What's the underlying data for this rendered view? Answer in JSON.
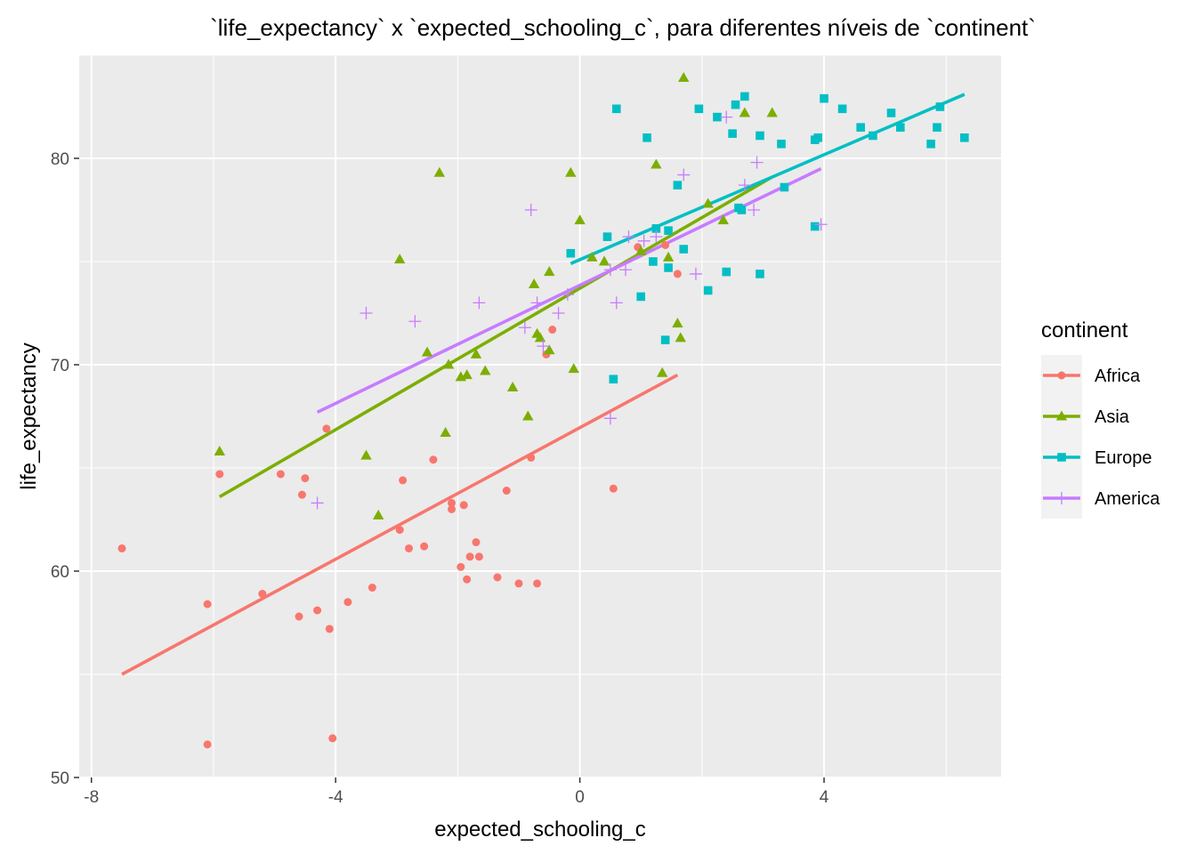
{
  "chart_data": {
    "type": "scatter",
    "title": "`life_expectancy` x `expected_schooling_c`, para diferentes níveis de `continent`",
    "xlabel": "expected_schooling_c",
    "ylabel": "life_expectancy",
    "xlim": [
      -8.2,
      6.9
    ],
    "ylim": [
      50,
      85
    ],
    "x_ticks": [
      -8,
      -4,
      0,
      4
    ],
    "y_ticks": [
      50,
      60,
      70,
      80
    ],
    "grid": true,
    "legend_title": "continent",
    "legend_position": "right",
    "series": [
      {
        "name": "Africa",
        "color": "#F8766D",
        "marker": "circle",
        "points": [
          [
            -7.5,
            61.1
          ],
          [
            -6.1,
            58.4
          ],
          [
            -6.1,
            51.6
          ],
          [
            -5.9,
            64.7
          ],
          [
            -5.2,
            58.9
          ],
          [
            -4.9,
            64.7
          ],
          [
            -4.6,
            57.8
          ],
          [
            -4.55,
            63.7
          ],
          [
            -4.5,
            64.5
          ],
          [
            -4.3,
            58.1
          ],
          [
            -4.15,
            66.9
          ],
          [
            -4.1,
            57.2
          ],
          [
            -4.05,
            51.9
          ],
          [
            -3.8,
            58.5
          ],
          [
            -3.4,
            59.2
          ],
          [
            -2.95,
            62.0
          ],
          [
            -2.9,
            64.4
          ],
          [
            -2.8,
            61.1
          ],
          [
            -2.55,
            61.2
          ],
          [
            -2.4,
            65.4
          ],
          [
            -2.1,
            63.3
          ],
          [
            -2.1,
            63.0
          ],
          [
            -1.95,
            60.2
          ],
          [
            -1.9,
            63.2
          ],
          [
            -1.85,
            59.6
          ],
          [
            -1.8,
            60.7
          ],
          [
            -1.7,
            61.4
          ],
          [
            -1.65,
            60.7
          ],
          [
            -1.35,
            59.7
          ],
          [
            -1.2,
            63.9
          ],
          [
            -1.0,
            59.4
          ],
          [
            -0.8,
            65.5
          ],
          [
            -0.7,
            59.4
          ],
          [
            -0.55,
            70.5
          ],
          [
            -0.45,
            71.7
          ],
          [
            0.55,
            64.0
          ],
          [
            0.95,
            75.7
          ],
          [
            1.4,
            75.8
          ],
          [
            1.6,
            74.4
          ]
        ],
        "fit": [
          [
            -7.5,
            55.0
          ],
          [
            1.6,
            69.5
          ]
        ]
      },
      {
        "name": "Asia",
        "color": "#7CAE00",
        "marker": "triangle",
        "points": [
          [
            -5.9,
            65.8
          ],
          [
            -3.5,
            65.6
          ],
          [
            -3.3,
            62.7
          ],
          [
            -2.95,
            75.1
          ],
          [
            -2.5,
            70.6
          ],
          [
            -2.3,
            79.3
          ],
          [
            -2.2,
            66.7
          ],
          [
            -2.15,
            70.0
          ],
          [
            -1.95,
            69.4
          ],
          [
            -1.85,
            69.5
          ],
          [
            -1.7,
            70.5
          ],
          [
            -1.55,
            69.7
          ],
          [
            -1.1,
            68.9
          ],
          [
            -0.85,
            67.5
          ],
          [
            -0.75,
            73.9
          ],
          [
            -0.7,
            71.5
          ],
          [
            -0.65,
            71.3
          ],
          [
            -0.5,
            74.5
          ],
          [
            -0.5,
            70.7
          ],
          [
            -0.15,
            79.3
          ],
          [
            -0.1,
            69.8
          ],
          [
            0.0,
            77.0
          ],
          [
            0.2,
            75.2
          ],
          [
            0.4,
            75.0
          ],
          [
            1.0,
            75.5
          ],
          [
            1.25,
            79.7
          ],
          [
            1.35,
            69.6
          ],
          [
            1.45,
            75.2
          ],
          [
            1.6,
            72.0
          ],
          [
            1.65,
            71.3
          ],
          [
            1.7,
            83.9
          ],
          [
            2.1,
            77.8
          ],
          [
            2.35,
            77.0
          ],
          [
            2.7,
            82.2
          ],
          [
            3.15,
            82.2
          ]
        ],
        "fit": [
          [
            -5.9,
            63.6
          ],
          [
            3.15,
            79.1
          ]
        ]
      },
      {
        "name": "Europe",
        "color": "#00BFC4",
        "marker": "square",
        "points": [
          [
            -0.15,
            75.4
          ],
          [
            0.45,
            76.2
          ],
          [
            0.55,
            69.3
          ],
          [
            0.6,
            82.4
          ],
          [
            1.0,
            73.3
          ],
          [
            1.1,
            81.0
          ],
          [
            1.2,
            75.0
          ],
          [
            1.25,
            76.6
          ],
          [
            1.4,
            71.2
          ],
          [
            1.45,
            76.5
          ],
          [
            1.45,
            74.7
          ],
          [
            1.6,
            78.7
          ],
          [
            1.7,
            75.6
          ],
          [
            1.95,
            82.4
          ],
          [
            2.1,
            73.6
          ],
          [
            2.25,
            82.0
          ],
          [
            2.4,
            74.5
          ],
          [
            2.5,
            81.2
          ],
          [
            2.55,
            82.6
          ],
          [
            2.6,
            77.6
          ],
          [
            2.65,
            77.5
          ],
          [
            2.7,
            83.0
          ],
          [
            2.95,
            81.1
          ],
          [
            2.95,
            74.4
          ],
          [
            3.3,
            80.7
          ],
          [
            3.35,
            78.6
          ],
          [
            3.85,
            80.9
          ],
          [
            3.85,
            76.7
          ],
          [
            3.9,
            81.0
          ],
          [
            4.0,
            82.9
          ],
          [
            4.3,
            82.4
          ],
          [
            4.6,
            81.5
          ],
          [
            4.8,
            81.1
          ],
          [
            5.1,
            82.2
          ],
          [
            5.25,
            81.5
          ],
          [
            5.75,
            80.7
          ],
          [
            5.85,
            81.5
          ],
          [
            5.9,
            82.5
          ],
          [
            6.3,
            81.0
          ]
        ],
        "fit": [
          [
            -0.15,
            74.9
          ],
          [
            6.3,
            83.1
          ]
        ]
      },
      {
        "name": "America",
        "color": "#C77CFF",
        "marker": "plus",
        "points": [
          [
            -4.3,
            63.3
          ],
          [
            -3.5,
            72.5
          ],
          [
            -2.7,
            72.1
          ],
          [
            -1.65,
            73.0
          ],
          [
            -0.9,
            71.8
          ],
          [
            -0.8,
            77.5
          ],
          [
            -0.7,
            73.0
          ],
          [
            -0.6,
            70.9
          ],
          [
            -0.35,
            72.5
          ],
          [
            -0.2,
            73.4
          ],
          [
            0.5,
            74.6
          ],
          [
            0.5,
            67.4
          ],
          [
            0.6,
            73.0
          ],
          [
            0.75,
            74.6
          ],
          [
            0.8,
            76.2
          ],
          [
            1.05,
            76.0
          ],
          [
            1.25,
            76.2
          ],
          [
            1.7,
            79.2
          ],
          [
            1.9,
            74.4
          ],
          [
            2.4,
            82.0
          ],
          [
            2.7,
            78.7
          ],
          [
            2.85,
            77.5
          ],
          [
            2.9,
            79.8
          ],
          [
            3.95,
            76.8
          ]
        ],
        "fit": [
          [
            -4.3,
            67.7
          ],
          [
            3.95,
            79.5
          ]
        ]
      }
    ]
  }
}
